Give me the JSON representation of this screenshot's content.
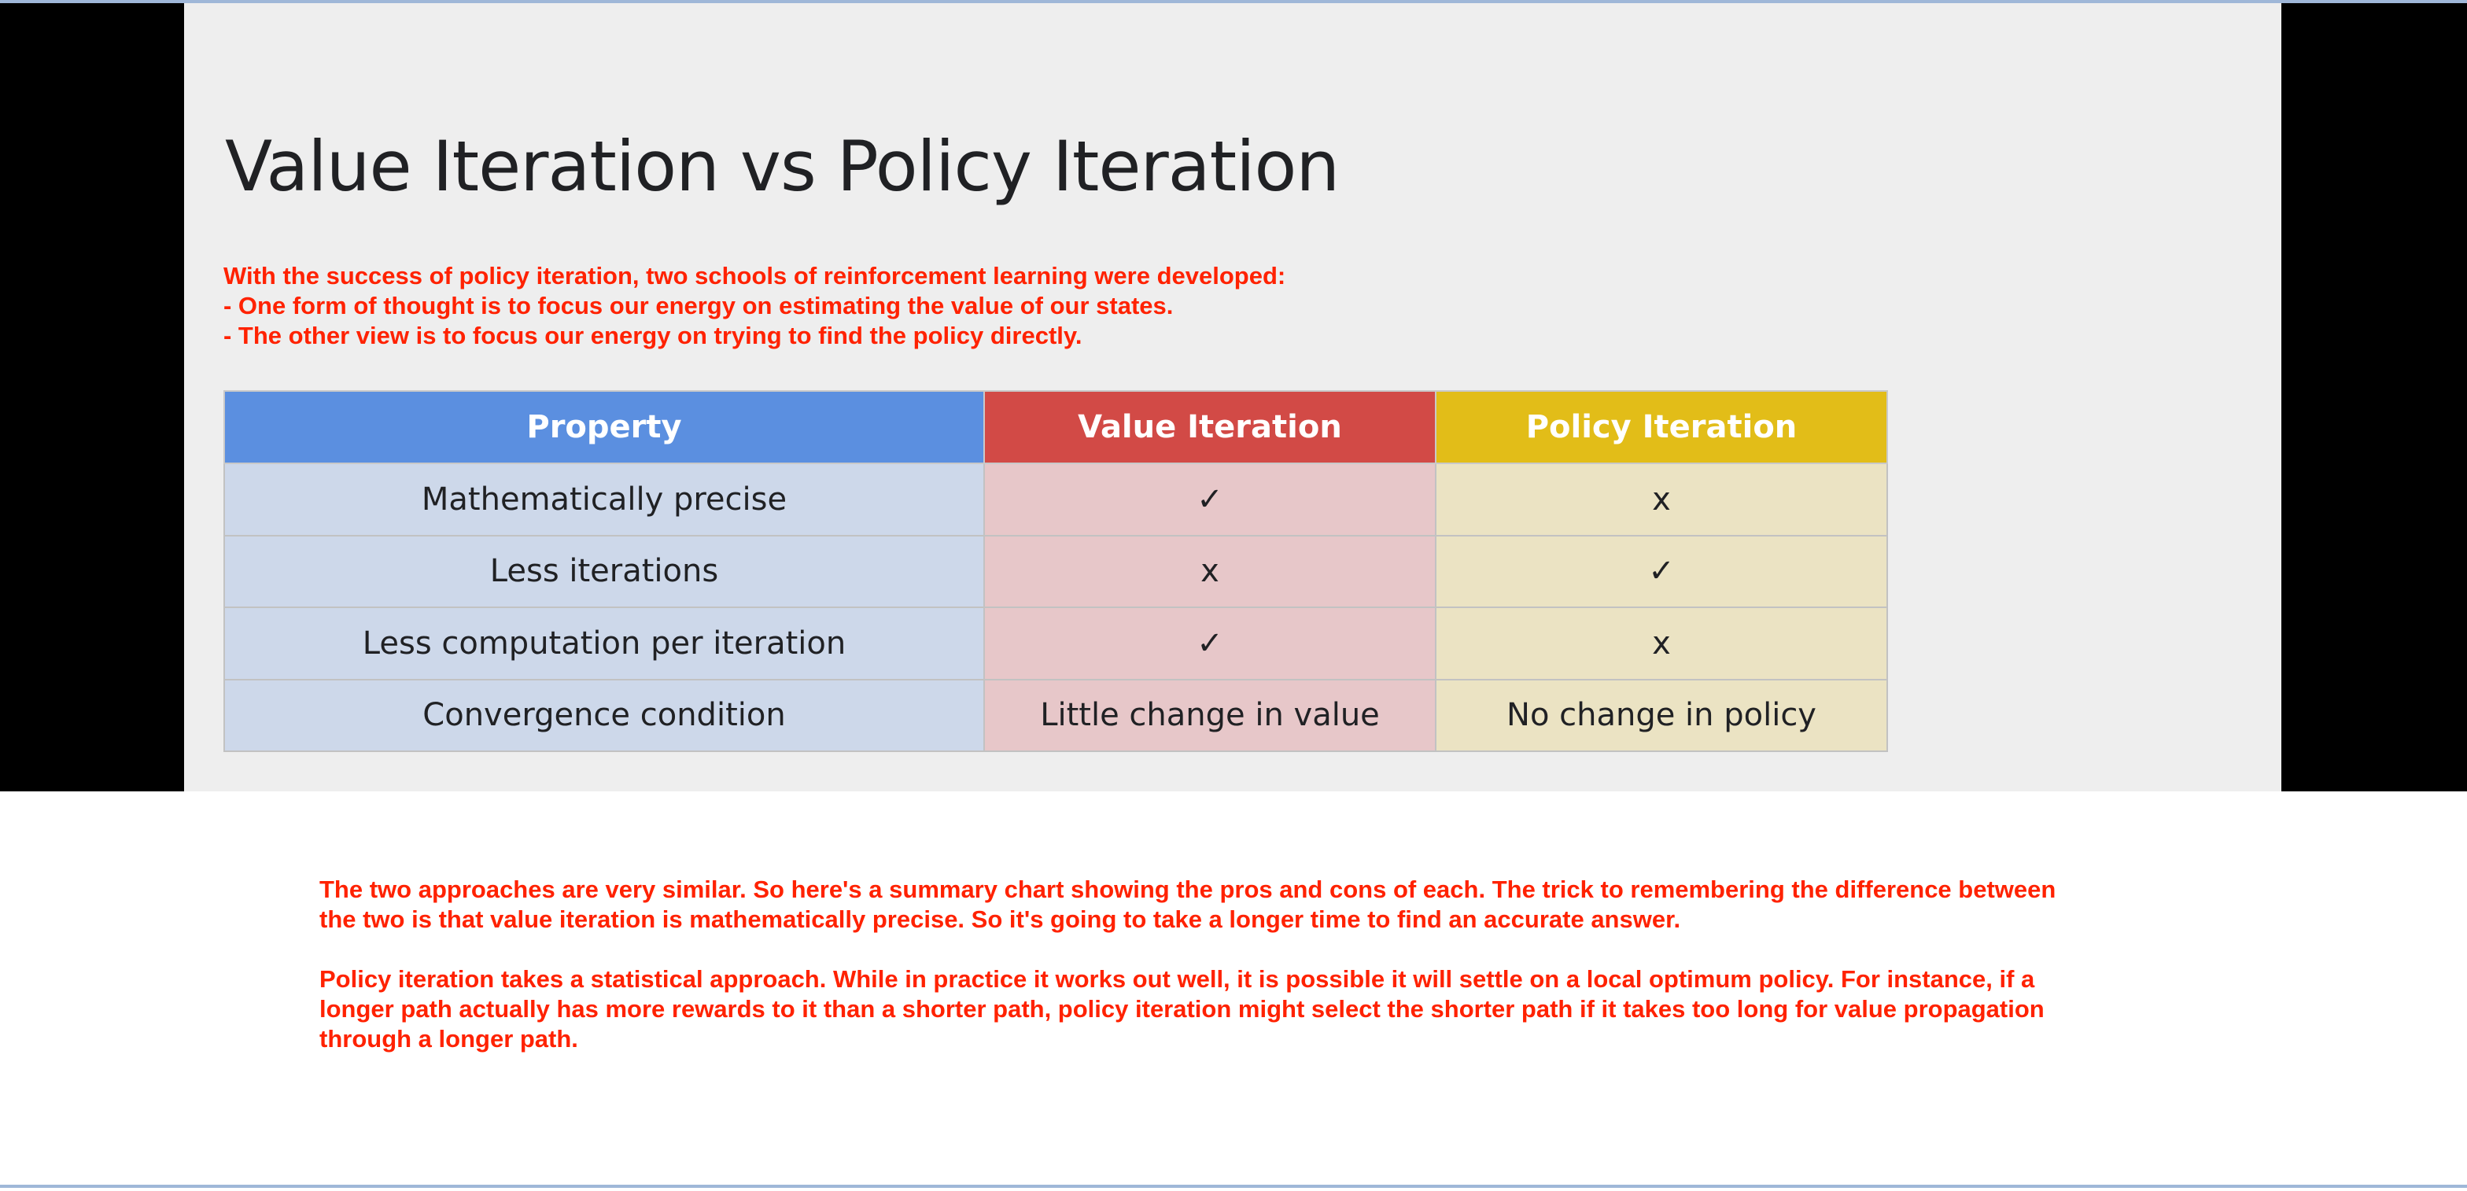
{
  "slide": {
    "title": "Value Iteration vs Policy Iteration",
    "intro": [
      "With the success of policy iteration, two schools of reinforcement learning were developed:",
      "- One form of thought is to focus our energy on estimating the value of our states.",
      "- The other view is to focus our energy on trying to find the policy directly."
    ],
    "table": {
      "headers": [
        "Property",
        "Value Iteration",
        "Policy Iteration"
      ],
      "header_colors": [
        "#5b8fe0",
        "#d24a46",
        "#e2bd18"
      ],
      "rows": [
        [
          "Mathematically precise",
          "✓",
          "x"
        ],
        [
          "Less iterations",
          "x",
          "✓"
        ],
        [
          "Less computation per iteration",
          "✓",
          "x"
        ],
        [
          "Convergence condition",
          "Little change in value",
          "No change in policy"
        ]
      ]
    }
  },
  "notes": [
    "The two approaches are very similar. So here's a summary chart showing the pros and cons of each. The trick to remembering the difference between the two is that value iteration is mathematically precise. So it's going to take a longer time to find an accurate answer.",
    "Policy iteration takes a statistical approach. While in practice it works out well, it is possible it will settle on a local optimum policy. For instance, if a longer path actually has more rewards to it than a shorter path, policy iteration might select the shorter path if it takes too long for value propagation through a longer path."
  ],
  "colors": {
    "annotation_text": "#ff2200",
    "slide_background": "#eeeeee",
    "letterbox": "#000000"
  }
}
